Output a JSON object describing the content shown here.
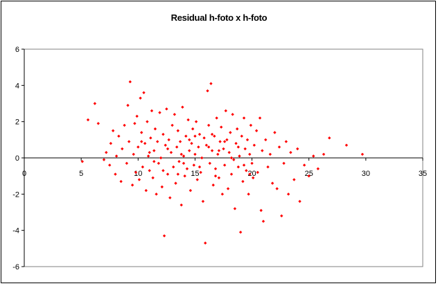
{
  "chart_data": {
    "type": "scatter",
    "title": "Residual h-foto x h-foto",
    "xlabel": "",
    "ylabel": "",
    "xlim": [
      0,
      35
    ],
    "ylim": [
      -6,
      6
    ],
    "x_ticks": [
      "0",
      "5",
      "10",
      "15",
      "20",
      "25",
      "30",
      "35"
    ],
    "y_ticks": [
      "6",
      "4",
      "2",
      "0",
      "-2",
      "-4",
      "-6"
    ],
    "grid": false,
    "legend": "none",
    "marker_color": "#ff0000",
    "series": [
      {
        "points": [
          [
            5.1,
            -0.2
          ],
          [
            5.6,
            2.1
          ],
          [
            6.2,
            3.0
          ],
          [
            6.5,
            1.9
          ],
          [
            7.0,
            -0.1
          ],
          [
            7.2,
            0.3
          ],
          [
            7.5,
            -0.4
          ],
          [
            7.6,
            0.8
          ],
          [
            7.8,
            1.5
          ],
          [
            8.0,
            -0.9
          ],
          [
            8.1,
            0.1
          ],
          [
            8.3,
            1.2
          ],
          [
            8.5,
            -1.3
          ],
          [
            8.6,
            0.5
          ],
          [
            8.8,
            1.8
          ],
          [
            9.0,
            -0.3
          ],
          [
            9.1,
            2.9
          ],
          [
            9.2,
            0.9
          ],
          [
            9.3,
            4.2
          ],
          [
            9.5,
            -1.5
          ],
          [
            9.6,
            0.2
          ],
          [
            9.7,
            1.9
          ],
          [
            9.8,
            -0.8
          ],
          [
            9.9,
            2.3
          ],
          [
            10.0,
            0.6
          ],
          [
            10.1,
            -1.2
          ],
          [
            10.2,
            3.3
          ],
          [
            10.3,
            1.4
          ],
          [
            10.4,
            -0.5
          ],
          [
            10.5,
            3.6
          ],
          [
            10.6,
            0.8
          ],
          [
            10.7,
            -1.8
          ],
          [
            10.8,
            2.0
          ],
          [
            10.9,
            0.1
          ],
          [
            11.0,
            -0.7
          ],
          [
            11.1,
            1.1
          ],
          [
            11.2,
            2.6
          ],
          [
            11.3,
            -1.1
          ],
          [
            11.4,
            0.4
          ],
          [
            11.5,
            1.6
          ],
          [
            11.6,
            -2.0
          ],
          [
            11.7,
            0.9
          ],
          [
            11.8,
            -0.3
          ],
          [
            11.9,
            2.5
          ],
          [
            12.0,
            0.0
          ],
          [
            12.1,
            -1.6
          ],
          [
            12.2,
            1.3
          ],
          [
            12.3,
            -4.3
          ],
          [
            12.4,
            0.7
          ],
          [
            12.5,
            2.7
          ],
          [
            12.6,
            -0.9
          ],
          [
            12.7,
            1.0
          ],
          [
            12.8,
            -2.2
          ],
          [
            12.9,
            0.3
          ],
          [
            13.0,
            1.8
          ],
          [
            13.1,
            -0.5
          ],
          [
            13.2,
            2.4
          ],
          [
            13.3,
            -1.4
          ],
          [
            13.4,
            0.6
          ],
          [
            13.5,
            1.5
          ],
          [
            13.6,
            -0.2
          ],
          [
            13.7,
            0.9
          ],
          [
            13.8,
            -2.6
          ],
          [
            13.9,
            2.8
          ],
          [
            14.0,
            0.1
          ],
          [
            14.1,
            -1.0
          ],
          [
            14.2,
            1.2
          ],
          [
            14.3,
            -0.6
          ],
          [
            14.4,
            2.1
          ],
          [
            14.5,
            0.4
          ],
          [
            14.6,
            -1.8
          ],
          [
            14.7,
            0.8
          ],
          [
            14.8,
            1.6
          ],
          [
            14.9,
            -0.4
          ],
          [
            15.0,
            0.2
          ],
          [
            15.1,
            2.0
          ],
          [
            15.2,
            -1.2
          ],
          [
            15.3,
            0.6
          ],
          [
            15.4,
            1.3
          ],
          [
            15.5,
            -0.8
          ],
          [
            15.6,
            0.0
          ],
          [
            15.7,
            -2.4
          ],
          [
            15.8,
            1.1
          ],
          [
            15.9,
            -4.7
          ],
          [
            16.0,
            0.7
          ],
          [
            16.1,
            3.7
          ],
          [
            16.2,
            1.8
          ],
          [
            16.3,
            -0.3
          ],
          [
            16.4,
            4.1
          ],
          [
            16.5,
            0.4
          ],
          [
            16.6,
            -1.5
          ],
          [
            16.7,
            1.2
          ],
          [
            16.8,
            -0.6
          ],
          [
            16.9,
            2.2
          ],
          [
            17.0,
            0.2
          ],
          [
            17.1,
            -1.1
          ],
          [
            17.2,
            0.9
          ],
          [
            17.3,
            1.7
          ],
          [
            17.4,
            -2.0
          ],
          [
            17.5,
            0.5
          ],
          [
            17.6,
            -0.4
          ],
          [
            17.7,
            2.6
          ],
          [
            17.8,
            1.0
          ],
          [
            17.9,
            -1.7
          ],
          [
            18.0,
            0.3
          ],
          [
            18.1,
            1.4
          ],
          [
            18.2,
            -0.9
          ],
          [
            18.3,
            2.4
          ],
          [
            18.4,
            -0.1
          ],
          [
            18.5,
            -2.8
          ],
          [
            18.6,
            0.8
          ],
          [
            18.7,
            1.6
          ],
          [
            18.8,
            -0.5
          ],
          [
            18.9,
            0.1
          ],
          [
            19.0,
            -4.1
          ],
          [
            19.1,
            1.2
          ],
          [
            19.2,
            -1.3
          ],
          [
            19.3,
            2.2
          ],
          [
            19.4,
            0.5
          ],
          [
            19.5,
            -0.7
          ],
          [
            19.6,
            1.0
          ],
          [
            19.7,
            -2.0
          ],
          [
            19.8,
            0.2
          ],
          [
            19.9,
            1.8
          ],
          [
            20.0,
            -0.3
          ],
          [
            20.1,
            -1.1
          ],
          [
            20.2,
            0.7
          ],
          [
            20.4,
            1.5
          ],
          [
            20.5,
            -0.8
          ],
          [
            20.7,
            2.2
          ],
          [
            20.8,
            -2.9
          ],
          [
            20.9,
            0.4
          ],
          [
            21.0,
            -3.5
          ],
          [
            21.2,
            1.0
          ],
          [
            21.4,
            -0.5
          ],
          [
            21.6,
            0.2
          ],
          [
            21.8,
            -1.4
          ],
          [
            22.0,
            1.4
          ],
          [
            22.2,
            -1.7
          ],
          [
            22.4,
            0.6
          ],
          [
            22.6,
            -3.2
          ],
          [
            22.8,
            -0.3
          ],
          [
            23.0,
            0.9
          ],
          [
            23.2,
            -2.0
          ],
          [
            23.4,
            0.3
          ],
          [
            23.7,
            -1.2
          ],
          [
            24.0,
            0.5
          ],
          [
            24.2,
            -2.4
          ],
          [
            24.6,
            -0.4
          ],
          [
            25.0,
            -1.0
          ],
          [
            25.4,
            0.1
          ],
          [
            25.8,
            -0.6
          ],
          [
            26.3,
            0.2
          ],
          [
            26.8,
            1.1
          ],
          [
            28.3,
            0.7
          ],
          [
            29.7,
            0.2
          ],
          [
            10.3,
            0.9
          ],
          [
            11.4,
            -0.2
          ],
          [
            12.6,
            0.5
          ],
          [
            13.5,
            -0.9
          ],
          [
            14.5,
            1.0
          ],
          [
            15.4,
            -0.5
          ],
          [
            16.2,
            0.6
          ],
          [
            17.1,
            0.4
          ],
          [
            18.2,
            0.0
          ],
          [
            19.3,
            -0.4
          ],
          [
            12.2,
            -0.7
          ],
          [
            13.8,
            0.2
          ],
          [
            15.0,
            1.2
          ],
          [
            16.8,
            -1.0
          ],
          [
            17.6,
            0.9
          ],
          [
            18.8,
            0.6
          ],
          [
            11.0,
            0.3
          ],
          [
            14.0,
            -0.3
          ],
          [
            16.5,
            1.3
          ],
          [
            19.8,
            -0.9
          ]
        ]
      }
    ]
  }
}
